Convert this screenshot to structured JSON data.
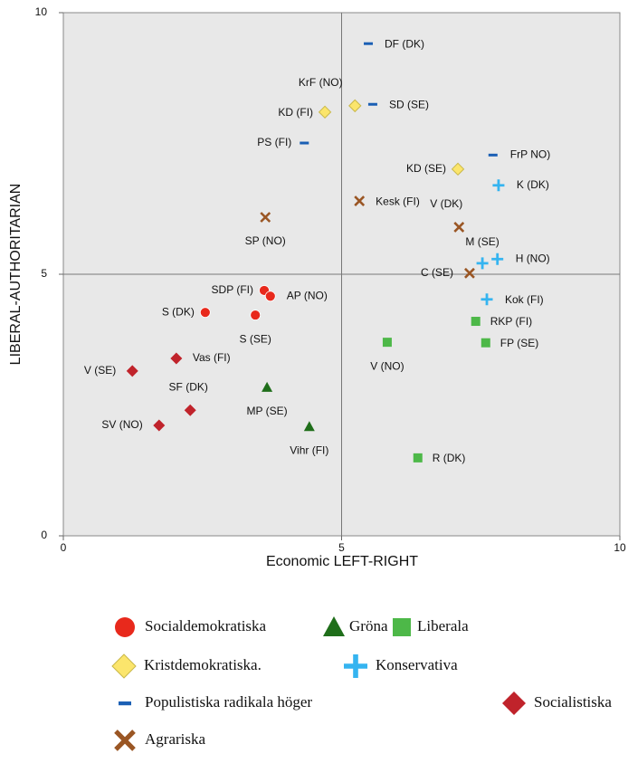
{
  "chart_data": {
    "type": "scatter",
    "x_label": "Economic LEFT-RIGHT",
    "y_label": "LIBERAL-AUTHORITARIAN",
    "xlim": [
      0,
      10
    ],
    "ylim": [
      0,
      10
    ],
    "xticks": [
      0,
      5,
      10
    ],
    "yticks": [
      0,
      5,
      10
    ],
    "grid": true,
    "series": [
      {
        "name": "Socialdemokratiska",
        "color": "#e8291c",
        "marker": "circle",
        "x": [
          3.61,
          3.72,
          2.55,
          3.45
        ],
        "y": [
          4.69,
          4.58,
          4.27,
          4.22
        ],
        "labels": [
          "SDP (FI)",
          "AP (NO)",
          "S (DK)",
          "S (SE)"
        ]
      },
      {
        "name": "Gröna",
        "color": "#1f6e1a",
        "marker": "triangle",
        "x": [
          3.66,
          4.42
        ],
        "y": [
          2.84,
          2.09
        ],
        "labels": [
          "MP (SE)",
          "Vihr (FI)"
        ]
      },
      {
        "name": "Liberala",
        "color": "#4db848",
        "marker": "square",
        "x": [
          5.82,
          7.41,
          7.59,
          6.37
        ],
        "y": [
          3.7,
          4.1,
          3.69,
          1.49
        ],
        "labels": [
          "V (NO)",
          "RKP (FI)",
          "FP (SE)",
          "R (DK)"
        ]
      },
      {
        "name": "Kristdemokratiska.",
        "color": "#fbe56c",
        "marker": "diamond",
        "x": [
          4.7,
          5.24,
          7.09
        ],
        "y": [
          8.1,
          8.22,
          7.01
        ],
        "labels": [
          "KD (FI)",
          "KrF (NO)",
          "KD (SE)"
        ]
      },
      {
        "name": "Konservativa",
        "color": "#35b4f0",
        "marker": "plus",
        "x": [
          7.82,
          7.8,
          7.53,
          7.61
        ],
        "y": [
          6.7,
          5.29,
          5.21,
          4.52
        ],
        "labels": [
          "K (DK)",
          "H (NO)",
          "M (SE)",
          "Kok (FI)"
        ]
      },
      {
        "name": "Populistiska radikala höger",
        "color": "#1a5fb4",
        "marker": "dash",
        "x": [
          5.48,
          5.56,
          4.33,
          7.72
        ],
        "y": [
          9.41,
          8.25,
          7.51,
          7.28
        ],
        "labels": [
          "DF (DK)",
          "SD (SE)",
          "PS (FI)",
          "FrP  NO)"
        ]
      },
      {
        "name": "Socialistiska",
        "color": "#c0232b",
        "marker": "diamond",
        "x": [
          1.24,
          2.03,
          2.28,
          1.72
        ],
        "y": [
          3.15,
          3.39,
          2.4,
          2.11
        ],
        "labels": [
          "V (SE)",
          "Vas (FI)",
          "SF (DK)",
          "SV (NO)"
        ]
      },
      {
        "name": "Agrariska",
        "color": "#9a5624",
        "marker": "cross",
        "x": [
          3.63,
          5.32,
          7.11,
          7.3
        ],
        "y": [
          6.09,
          6.4,
          5.9,
          5.02
        ],
        "labels": [
          "SP (NO)",
          "Kesk (FI)",
          "V (DK)",
          "C (SE)"
        ]
      }
    ]
  }
}
